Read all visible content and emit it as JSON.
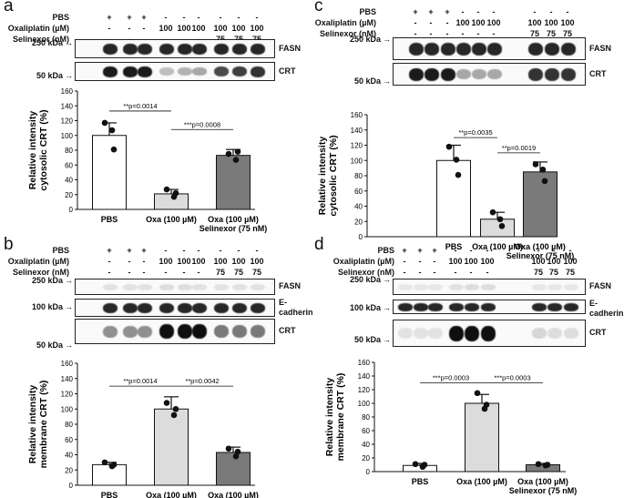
{
  "panels": {
    "a": {
      "label": "a",
      "treatments": {
        "pbs": "PBS",
        "oxa": "Oxaliplatin (µM)",
        "sel": "Selinexor (nM)"
      },
      "lanes": {
        "pbs": [
          "+",
          "+",
          "+",
          "-",
          "-",
          "-",
          "-",
          "-",
          "-"
        ],
        "oxa": [
          "-",
          "-",
          "-",
          "100",
          "100",
          "100",
          "100",
          "100",
          "100"
        ],
        "sel": [
          "-",
          "-",
          "-",
          "-",
          "-",
          "-",
          "75",
          "75",
          "75"
        ]
      },
      "blots": [
        {
          "label": "FASN",
          "marker": "250 kDa"
        },
        {
          "label": "CRT",
          "marker": "50 kDa"
        }
      ]
    },
    "b": {
      "label": "b",
      "treatments": {
        "pbs": "PBS",
        "oxa": "Oxaliplatin (µM)",
        "sel": "Selinexor (nM)"
      },
      "lanes": {
        "pbs": [
          "+",
          "+",
          "+",
          "-",
          "-",
          "-",
          "-",
          "-",
          "-"
        ],
        "oxa": [
          "-",
          "-",
          "-",
          "100",
          "100",
          "100",
          "100",
          "100",
          "100"
        ],
        "sel": [
          "-",
          "-",
          "-",
          "-",
          "-",
          "-",
          "75",
          "75",
          "75"
        ]
      },
      "blots": [
        {
          "label": "FASN",
          "marker": "250 kDa"
        },
        {
          "label": "E-\ncadherin",
          "marker": "100 kDa"
        },
        {
          "label": "CRT",
          "marker": "50 kDa"
        }
      ]
    },
    "c": {
      "label": "c",
      "treatments": {
        "pbs": "PBS",
        "oxa": "Oxaliplatin (µM)",
        "sel": "Selinexor (nM)"
      },
      "lanes": {
        "pbs": [
          "+",
          "+",
          "+",
          "-",
          "-",
          "-",
          "-",
          "-",
          "-"
        ],
        "oxa": [
          "-",
          "-",
          "-",
          "100",
          "100",
          "100",
          "100",
          "100",
          "100"
        ],
        "sel": [
          "-",
          "-",
          "-",
          "-",
          "-",
          "-",
          "75",
          "75",
          "75"
        ]
      },
      "blots": [
        {
          "label": "FASN",
          "marker": "250 kDa"
        },
        {
          "label": "CRT",
          "marker": "50 kDa"
        }
      ]
    },
    "d": {
      "label": "d",
      "treatments": {
        "pbs": "PBS",
        "oxa": "Oxaliplatin (µM)",
        "sel": "Selinexor (nM)"
      },
      "lanes": {
        "pbs": [
          "+",
          "+",
          "+",
          "-",
          "-",
          "-",
          "-",
          "-",
          "-"
        ],
        "oxa": [
          "-",
          "-",
          "-",
          "100",
          "100",
          "100",
          "100",
          "100",
          "100"
        ],
        "sel": [
          "-",
          "-",
          "-",
          "-",
          "-",
          "-",
          "75",
          "75",
          "75"
        ]
      },
      "blots": [
        {
          "label": "FASN",
          "marker": "250 kDa"
        },
        {
          "label": "E-\ncadherin",
          "marker": "100 kDa"
        },
        {
          "label": "CRT",
          "marker": "50 kDa"
        }
      ]
    }
  },
  "chart_data": [
    {
      "panel": "a",
      "type": "bar",
      "categories": [
        "PBS",
        "Oxa (100 µM)",
        "Oxa (100 µM)\nSelinexor (75 nM)"
      ],
      "values": [
        100,
        21,
        73
      ],
      "errors": [
        17,
        6,
        8
      ],
      "points": [
        [
          117,
          107,
          81
        ],
        [
          27,
          17,
          22
        ],
        [
          75,
          67,
          78
        ]
      ],
      "ylabel": "Relative intensity\ncytosolic CRT (%)",
      "ylim": [
        0,
        160
      ],
      "yticks": [
        0,
        20,
        40,
        60,
        80,
        100,
        120,
        140,
        160
      ],
      "colors": [
        "#ffffff",
        "#dcdcdc",
        "#7a7a7a"
      ],
      "annotations": [
        {
          "text": "**p=0.0014",
          "from": 0,
          "to": 1,
          "y": 133
        },
        {
          "text": "***p=0.0008",
          "from": 1,
          "to": 2,
          "y": 108
        }
      ]
    },
    {
      "panel": "b",
      "type": "bar",
      "categories": [
        "PBS",
        "Oxa (100 µM)",
        "Oxa (100 µM)\nSelinexor (75 nM)"
      ],
      "values": [
        27,
        100,
        43
      ],
      "errors": [
        3,
        16,
        7
      ],
      "points": [
        [
          30,
          25,
          27
        ],
        [
          108,
          92,
          100
        ],
        [
          48,
          38,
          44
        ]
      ],
      "ylabel": "Relative intensity\nmembrane CRT (%)",
      "ylim": [
        0,
        160
      ],
      "yticks": [
        0,
        20,
        40,
        60,
        80,
        100,
        120,
        140,
        160
      ],
      "colors": [
        "#ffffff",
        "#dcdcdc",
        "#7a7a7a"
      ],
      "annotations": [
        {
          "text": "**p=0.0014",
          "from": 0,
          "to": 1,
          "y": 130
        },
        {
          "text": "**p=0.0042",
          "from": 1,
          "to": 2,
          "y": 130
        }
      ]
    },
    {
      "panel": "c",
      "type": "bar",
      "categories": [
        "PBS",
        "Oxa (100 µM)",
        "Oxa (100 µM)\nSelinexor (75 nM)"
      ],
      "values": [
        100,
        23,
        85
      ],
      "errors": [
        20,
        9,
        13
      ],
      "points": [
        [
          118,
          101,
          81
        ],
        [
          32,
          23,
          14
        ],
        [
          95,
          88,
          73
        ]
      ],
      "ylabel": "Relative intensity\ncytosolic CRT (%)",
      "ylim": [
        0,
        160
      ],
      "yticks": [
        0,
        20,
        40,
        60,
        80,
        100,
        120,
        140,
        160
      ],
      "colors": [
        "#ffffff",
        "#dcdcdc",
        "#7a7a7a"
      ],
      "annotations": [
        {
          "text": "**p=0.0035",
          "from": 0,
          "to": 1,
          "y": 130
        },
        {
          "text": "**p=0.0019",
          "from": 1,
          "to": 2,
          "y": 110
        }
      ]
    },
    {
      "panel": "d",
      "type": "bar",
      "categories": [
        "PBS",
        "Oxa (100 µM)",
        "Oxa (100 µM)\nSelinexor (75 nM)"
      ],
      "values": [
        9,
        100,
        10
      ],
      "errors": [
        3,
        13,
        2
      ],
      "points": [
        [
          11,
          7,
          10
        ],
        [
          115,
          92,
          98
        ],
        [
          11,
          9,
          10
        ]
      ],
      "ylabel": "Relative intensity\nmembrane CRT (%)",
      "ylim": [
        0,
        160
      ],
      "yticks": [
        0,
        20,
        40,
        60,
        80,
        100,
        120,
        140,
        160
      ],
      "colors": [
        "#ffffff",
        "#dcdcdc",
        "#7a7a7a"
      ],
      "annotations": [
        {
          "text": "***p=0.0003",
          "from": 0,
          "to": 1,
          "y": 130
        },
        {
          "text": "***p=0.0003",
          "from": 1,
          "to": 2,
          "y": 130
        }
      ]
    }
  ]
}
